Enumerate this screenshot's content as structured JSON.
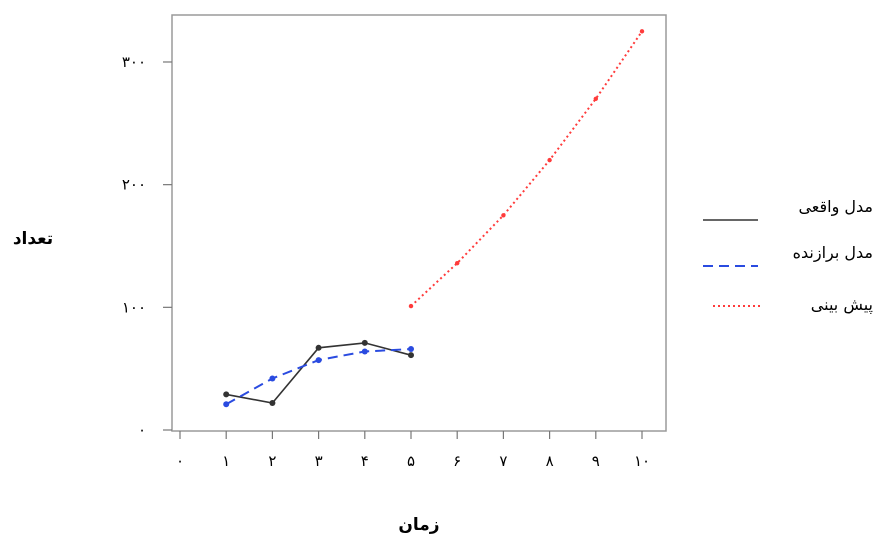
{
  "chart_data": {
    "type": "line",
    "xlabel": "زمان",
    "ylabel": "تعداد",
    "x_ticks": [
      "۰",
      "۱",
      "۲",
      "۳",
      "۴",
      "۵",
      "۶",
      "۷",
      "۸",
      "۹",
      "۱۰"
    ],
    "y_ticks": [
      "۰",
      "۱۰۰",
      "۲۰۰",
      "۳۰۰"
    ],
    "xlim": [
      0,
      10
    ],
    "ylim": [
      0,
      335
    ],
    "legend_position": "right",
    "grid": false,
    "series": [
      {
        "name": "مدل واقعی",
        "color": "#333333",
        "style": "solid",
        "markers": true,
        "x": [
          1,
          2,
          3,
          4,
          5
        ],
        "y": [
          29,
          22,
          67,
          71,
          61
        ]
      },
      {
        "name": "مدل برازنده",
        "color": "#2a4be0",
        "style": "dashed",
        "markers": true,
        "x": [
          1,
          2,
          3,
          4,
          5
        ],
        "y": [
          21,
          42,
          57,
          64,
          66
        ]
      },
      {
        "name": "پیش بینی",
        "color": "#ff3b3b",
        "style": "dotted",
        "markers": true,
        "x": [
          5,
          6,
          7,
          8,
          9,
          10
        ],
        "y": [
          101,
          136,
          175,
          220,
          270,
          325
        ]
      }
    ]
  }
}
